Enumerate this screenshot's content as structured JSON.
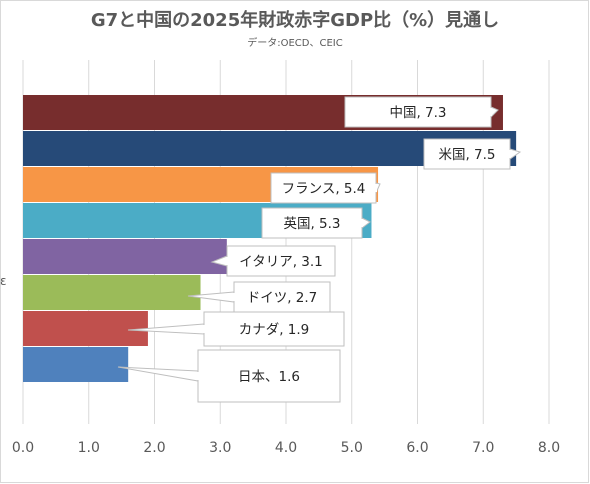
{
  "chart_data": {
    "type": "bar",
    "orientation": "horizontal",
    "title": "G7と中国の2025年財政赤字GDP比（%）見通し",
    "subtitle": "データ:OECD、CEIC",
    "categories": [
      "中国",
      "米国",
      "フランス",
      "英国",
      "イタリア",
      "ドイツ",
      "カナダ",
      "日本"
    ],
    "values": [
      7.3,
      7.5,
      5.4,
      5.3,
      3.1,
      2.7,
      1.9,
      1.6
    ],
    "data_labels": [
      "中国, 7.3",
      "米国, 7.5",
      "フランス, 5.4",
      "英国, 5.3",
      "イタリア, 3.1",
      "ドイツ, 2.7",
      "カナダ, 1.9",
      "日本、1.6"
    ],
    "colors": [
      "#772d2d",
      "#264a78",
      "#f79646",
      "#4bacc6",
      "#8064a2",
      "#9bbb59",
      "#c0504d",
      "#4f81bd"
    ],
    "xlim": [
      0,
      8
    ],
    "x_ticks": [
      "0.0",
      "1.0",
      "2.0",
      "3.0",
      "4.0",
      "5.0",
      "6.0",
      "7.0",
      "8.0"
    ],
    "grid": true,
    "legend": "none",
    "stray_label": "ε"
  }
}
